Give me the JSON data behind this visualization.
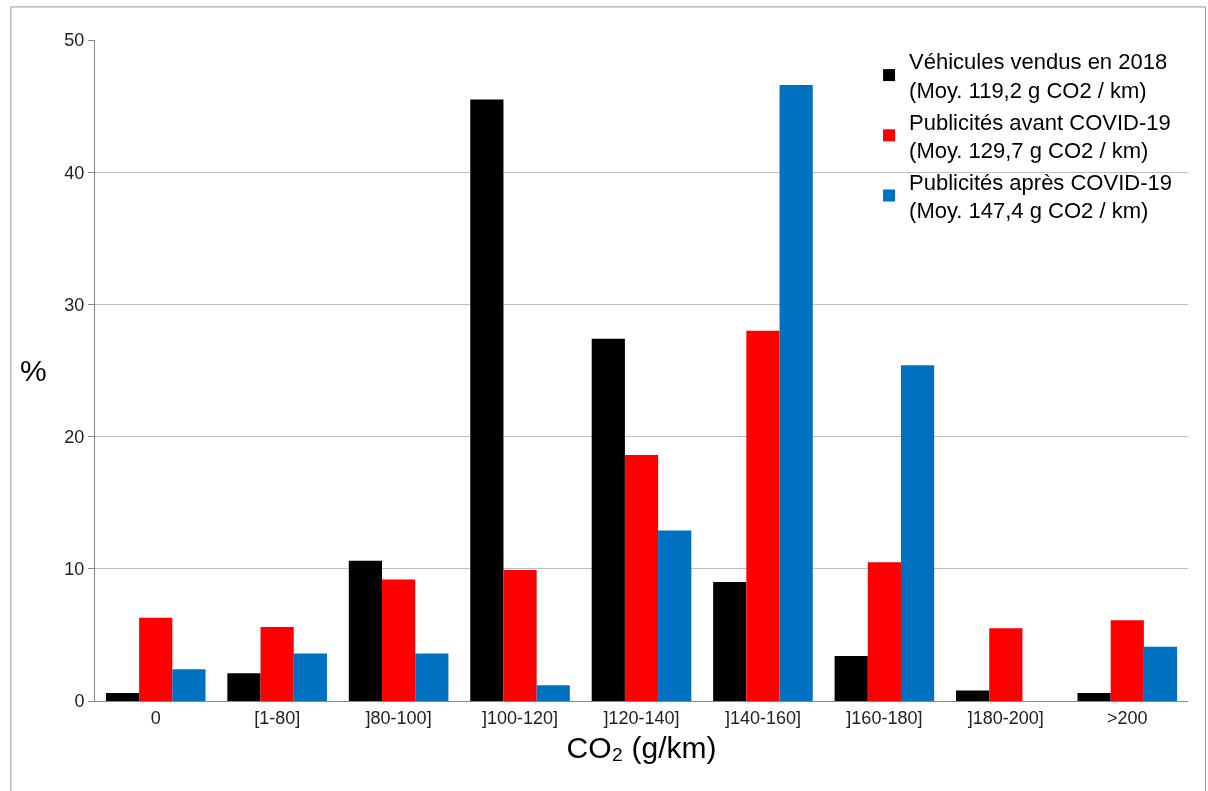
{
  "chart_data": {
    "type": "bar",
    "categories": [
      "0",
      "[1-80]",
      "]80-100]",
      "]100-120]",
      "]120-140]",
      "]140-160]",
      "]160-180]",
      "]180-200]",
      ">200"
    ],
    "series": [
      {
        "name": "Véhicules vendus en 2018\n(Moy. 119,2 g CO2 / km)",
        "color": "#000000",
        "values": [
          0.6,
          2.1,
          10.6,
          45.5,
          27.4,
          9.0,
          3.4,
          0.8,
          0.6
        ]
      },
      {
        "name": "Publicités avant COVID-19\n(Moy. 129,7 g CO2 / km)",
        "color": "#ff0000",
        "values": [
          6.3,
          5.6,
          9.2,
          9.9,
          18.6,
          28.0,
          10.5,
          5.5,
          6.1
        ]
      },
      {
        "name": "Publicités après COVID-19\n(Moy. 147,4 g CO2 / km)",
        "color": "#0070c0",
        "values": [
          2.4,
          3.6,
          3.6,
          1.2,
          12.9,
          46.6,
          25.4,
          0,
          4.1
        ]
      }
    ],
    "xlabel": "CO₂ (g/km)",
    "ylabel": "%",
    "ylim": [
      0,
      50
    ],
    "yticks": [
      0,
      10,
      20,
      30,
      40,
      50
    ],
    "grid": "y",
    "legend": "top right"
  }
}
